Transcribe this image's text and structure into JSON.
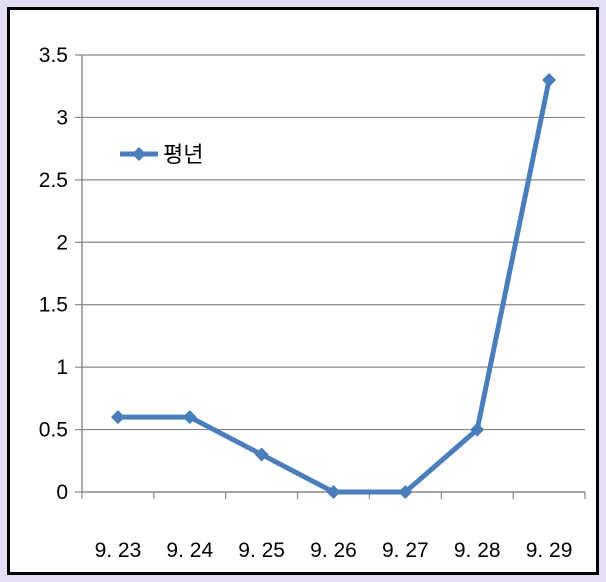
{
  "chart_data": {
    "type": "line",
    "categories": [
      "9. 23",
      "9. 24",
      "9. 25",
      "9. 26",
      "9. 27",
      "9. 28",
      "9. 29"
    ],
    "series": [
      {
        "name": "평년",
        "values": [
          0.6,
          0.6,
          0.3,
          0.0,
          0.0,
          0.5,
          3.3
        ],
        "color": "#4a7ebb"
      }
    ],
    "yticks": [
      "0",
      "0.5",
      "1",
      "1.5",
      "2",
      "2.5",
      "3",
      "3.5"
    ],
    "ylim": [
      0,
      3.5
    ],
    "grid": true,
    "legend": "top-left",
    "colors": {
      "background": "#e6dcf3",
      "plot": "#ffffff",
      "grid": "#868686",
      "series": "#4a7ebb"
    }
  }
}
